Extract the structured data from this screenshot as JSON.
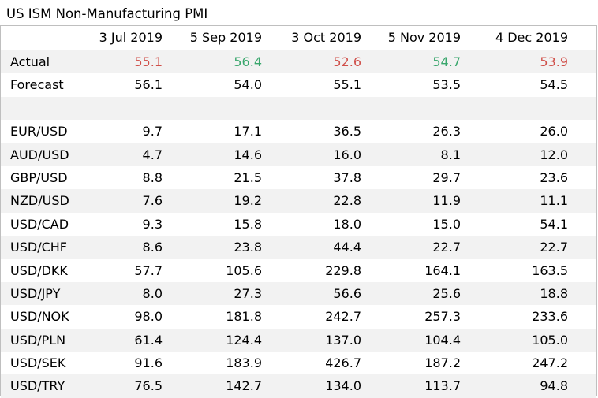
{
  "title": "US ISM Non-Manufacturing PMI",
  "columns": [
    "3 Jul 2019",
    "5 Sep 2019",
    "3 Oct 2019",
    "5 Nov 2019",
    "4 Dec 2019"
  ],
  "colors": {
    "up": "#3aa76d",
    "down": "#d0504a",
    "header_rule": "#d9534f",
    "stripe": "#f2f2f2"
  },
  "actual": {
    "label": "Actual",
    "values": [
      {
        "v": "55.1",
        "dir": "down"
      },
      {
        "v": "56.4",
        "dir": "up"
      },
      {
        "v": "52.6",
        "dir": "down"
      },
      {
        "v": "54.7",
        "dir": "up"
      },
      {
        "v": "53.9",
        "dir": "down"
      }
    ]
  },
  "forecast": {
    "label": "Forecast",
    "values": [
      "56.1",
      "54.0",
      "55.1",
      "53.5",
      "54.5"
    ]
  },
  "pairs": [
    {
      "label": "EUR/USD",
      "values": [
        "9.7",
        "17.1",
        "36.5",
        "26.3",
        "26.0"
      ]
    },
    {
      "label": "AUD/USD",
      "values": [
        "4.7",
        "14.6",
        "16.0",
        "8.1",
        "12.0"
      ]
    },
    {
      "label": "GBP/USD",
      "values": [
        "8.8",
        "21.5",
        "37.8",
        "29.7",
        "23.6"
      ]
    },
    {
      "label": "NZD/USD",
      "values": [
        "7.6",
        "19.2",
        "22.8",
        "11.9",
        "11.1"
      ]
    },
    {
      "label": "USD/CAD",
      "values": [
        "9.3",
        "15.8",
        "18.0",
        "15.0",
        "54.1"
      ]
    },
    {
      "label": "USD/CHF",
      "values": [
        "8.6",
        "23.8",
        "44.4",
        "22.7",
        "22.7"
      ]
    },
    {
      "label": "USD/DKK",
      "values": [
        "57.7",
        "105.6",
        "229.8",
        "164.1",
        "163.5"
      ]
    },
    {
      "label": "USD/JPY",
      "values": [
        "8.0",
        "27.3",
        "56.6",
        "25.6",
        "18.8"
      ]
    },
    {
      "label": "USD/NOK",
      "values": [
        "98.0",
        "181.8",
        "242.7",
        "257.3",
        "233.6"
      ]
    },
    {
      "label": "USD/PLN",
      "values": [
        "61.4",
        "124.4",
        "137.0",
        "104.4",
        "105.0"
      ]
    },
    {
      "label": "USD/SEK",
      "values": [
        "91.6",
        "183.9",
        "426.7",
        "187.2",
        "247.2"
      ]
    },
    {
      "label": "USD/TRY",
      "values": [
        "76.5",
        "142.7",
        "134.0",
        "113.7",
        "94.8"
      ]
    }
  ]
}
